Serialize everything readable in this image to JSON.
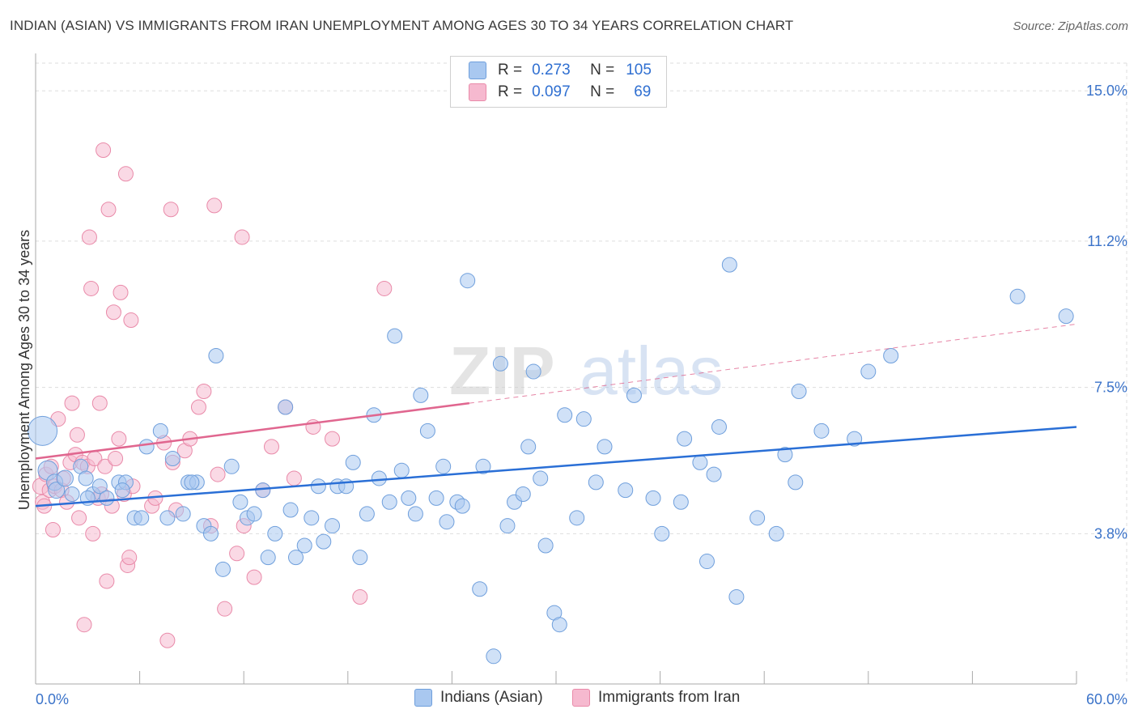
{
  "title": "INDIAN (ASIAN) VS IMMIGRANTS FROM IRAN UNEMPLOYMENT AMONG AGES 30 TO 34 YEARS CORRELATION CHART",
  "source": "Source: ZipAtlas.com",
  "watermark": {
    "zip": "ZIP",
    "atlas": "atlas"
  },
  "legend": {
    "series1": {
      "r_label": "R =",
      "r_value": "0.273",
      "n_label": "N =",
      "n_value": "105"
    },
    "series2": {
      "r_label": "R =",
      "r_value": "0.097",
      "n_label": "N =",
      "n_value": "69"
    }
  },
  "bottom_legend": {
    "series1": "Indians (Asian)",
    "series2": "Immigrants from Iran"
  },
  "colors": {
    "blue_fill": "#a9c8f0",
    "blue_stroke": "#6f9fdc",
    "blue_line": "#2a6fd6",
    "pink_fill": "#f6b9cf",
    "pink_stroke": "#e98aa9",
    "pink_line": "#e0668f",
    "tick_text": "#3b73c9",
    "grid": "#dddddd"
  },
  "chart_data": {
    "type": "scatter",
    "title": "INDIAN (ASIAN) VS IMMIGRANTS FROM IRAN UNEMPLOYMENT AMONG AGES 30 TO 34 YEARS CORRELATION CHART",
    "xlabel": "",
    "ylabel": "Unemployment Among Ages 30 to 34 years",
    "xlim": [
      0,
      60
    ],
    "ylim": [
      0,
      15.7
    ],
    "x_tick_labels": [
      "0.0%",
      "60.0%"
    ],
    "y_ticks": [
      3.8,
      7.5,
      11.2,
      15.0
    ],
    "y_tick_labels": [
      "3.8%",
      "7.5%",
      "11.2%",
      "15.0%"
    ],
    "series": [
      {
        "name": "Indians (Asian)",
        "R": 0.273,
        "N": 105,
        "trend": {
          "x0": 0,
          "y0": 4.5,
          "x1": 60,
          "y1": 6.5
        },
        "points": [
          [
            0.4,
            6.4,
            18
          ],
          [
            0.7,
            5.4,
            12
          ],
          [
            1.1,
            5.1,
            10
          ],
          [
            1.2,
            4.9,
            10
          ],
          [
            1.7,
            5.2,
            10
          ],
          [
            2.1,
            4.8,
            9
          ],
          [
            2.6,
            5.5,
            9
          ],
          [
            2.9,
            5.2,
            9
          ],
          [
            3.3,
            4.8,
            9
          ],
          [
            3.7,
            5.0,
            9
          ],
          [
            4.1,
            4.7,
            9
          ],
          [
            4.8,
            5.1,
            9
          ],
          [
            5.2,
            5.1,
            9
          ],
          [
            5.7,
            4.2,
            9
          ],
          [
            6.1,
            4.2,
            9
          ],
          [
            6.4,
            6.0,
            9
          ],
          [
            7.2,
            6.4,
            9
          ],
          [
            7.6,
            4.2,
            9
          ],
          [
            7.9,
            5.7,
            9
          ],
          [
            8.5,
            4.3,
            9
          ],
          [
            8.8,
            5.1,
            9
          ],
          [
            9.3,
            5.1,
            9
          ],
          [
            9.7,
            4.0,
            9
          ],
          [
            10.1,
            3.8,
            9
          ],
          [
            10.4,
            8.3,
            9
          ],
          [
            10.8,
            2.9,
            9
          ],
          [
            11.3,
            5.5,
            9
          ],
          [
            11.8,
            4.6,
            9
          ],
          [
            12.2,
            4.2,
            9
          ],
          [
            12.6,
            4.3,
            9
          ],
          [
            13.1,
            4.9,
            9
          ],
          [
            13.4,
            3.2,
            9
          ],
          [
            13.8,
            3.8,
            9
          ],
          [
            14.4,
            7.0,
            9
          ],
          [
            14.7,
            4.4,
            9
          ],
          [
            15.0,
            3.2,
            9
          ],
          [
            15.5,
            3.5,
            9
          ],
          [
            15.9,
            4.2,
            9
          ],
          [
            16.3,
            5.0,
            9
          ],
          [
            16.6,
            3.6,
            9
          ],
          [
            17.1,
            4.0,
            9
          ],
          [
            17.4,
            5.0,
            9
          ],
          [
            17.9,
            5.0,
            9
          ],
          [
            18.3,
            5.6,
            9
          ],
          [
            18.7,
            3.2,
            9
          ],
          [
            19.1,
            4.3,
            9
          ],
          [
            19.5,
            6.8,
            9
          ],
          [
            19.8,
            5.2,
            9
          ],
          [
            20.4,
            4.6,
            9
          ],
          [
            20.7,
            8.8,
            9
          ],
          [
            21.1,
            5.4,
            9
          ],
          [
            21.5,
            4.7,
            9
          ],
          [
            21.9,
            4.3,
            9
          ],
          [
            22.2,
            7.3,
            9
          ],
          [
            22.6,
            6.4,
            9
          ],
          [
            23.1,
            4.7,
            9
          ],
          [
            23.5,
            5.5,
            9
          ],
          [
            23.7,
            4.1,
            9
          ],
          [
            24.3,
            4.6,
            9
          ],
          [
            24.6,
            4.5,
            9
          ],
          [
            24.9,
            10.2,
            9
          ],
          [
            25.6,
            2.4,
            9
          ],
          [
            25.8,
            5.5,
            9
          ],
          [
            26.4,
            0.7,
            9
          ],
          [
            26.8,
            8.1,
            9
          ],
          [
            27.2,
            4.0,
            9
          ],
          [
            27.6,
            4.6,
            9
          ],
          [
            28.1,
            4.8,
            9
          ],
          [
            28.4,
            6.0,
            9
          ],
          [
            28.7,
            7.9,
            9
          ],
          [
            29.1,
            5.2,
            9
          ],
          [
            29.4,
            3.5,
            9
          ],
          [
            29.9,
            1.8,
            9
          ],
          [
            30.2,
            1.5,
            9
          ],
          [
            30.5,
            6.8,
            9
          ],
          [
            31.2,
            4.2,
            9
          ],
          [
            31.6,
            6.7,
            9
          ],
          [
            32.3,
            5.1,
            9
          ],
          [
            32.8,
            6.0,
            9
          ],
          [
            34.0,
            4.9,
            9
          ],
          [
            34.5,
            7.3,
            9
          ],
          [
            35.6,
            4.7,
            9
          ],
          [
            36.1,
            3.8,
            9
          ],
          [
            37.2,
            4.6,
            9
          ],
          [
            37.4,
            6.2,
            9
          ],
          [
            38.3,
            5.6,
            9
          ],
          [
            38.7,
            3.1,
            9
          ],
          [
            39.1,
            5.3,
            9
          ],
          [
            39.4,
            6.5,
            9
          ],
          [
            40.0,
            10.6,
            9
          ],
          [
            40.4,
            2.2,
            9
          ],
          [
            41.6,
            4.2,
            9
          ],
          [
            42.7,
            3.8,
            9
          ],
          [
            43.2,
            5.8,
            9
          ],
          [
            43.8,
            5.1,
            9
          ],
          [
            44.0,
            7.4,
            9
          ],
          [
            45.3,
            6.4,
            9
          ],
          [
            47.2,
            6.2,
            9
          ],
          [
            48.0,
            7.9,
            9
          ],
          [
            49.3,
            8.3,
            9
          ],
          [
            56.6,
            9.8,
            9
          ],
          [
            59.4,
            9.3,
            9
          ],
          [
            3.0,
            4.7,
            9
          ],
          [
            5.0,
            4.9,
            9
          ],
          [
            9.0,
            5.1,
            9
          ]
        ]
      },
      {
        "name": "Immigrants from Iran",
        "R": 0.097,
        "N": 69,
        "trend": {
          "x0": 0,
          "y0": 5.7,
          "x1": 25,
          "y1": 7.1,
          "dash_x1": 60,
          "dash_y1": 9.1
        },
        "points": [
          [
            0.3,
            5.0,
            10
          ],
          [
            0.4,
            4.6,
            9
          ],
          [
            0.5,
            4.5,
            9
          ],
          [
            0.6,
            5.3,
            9
          ],
          [
            0.8,
            4.9,
            9
          ],
          [
            0.9,
            5.5,
            9
          ],
          [
            1.0,
            3.9,
            9
          ],
          [
            1.1,
            5.0,
            9
          ],
          [
            1.3,
            6.7,
            9
          ],
          [
            1.5,
            4.9,
            9
          ],
          [
            1.6,
            5.2,
            9
          ],
          [
            1.8,
            4.6,
            9
          ],
          [
            2.0,
            5.6,
            9
          ],
          [
            2.1,
            7.1,
            9
          ],
          [
            2.3,
            5.8,
            9
          ],
          [
            2.4,
            6.3,
            9
          ],
          [
            2.5,
            4.2,
            9
          ],
          [
            2.7,
            5.6,
            9
          ],
          [
            2.8,
            1.5,
            9
          ],
          [
            3.0,
            5.5,
            9
          ],
          [
            3.1,
            11.3,
            9
          ],
          [
            3.2,
            10.0,
            9
          ],
          [
            3.3,
            3.8,
            9
          ],
          [
            3.4,
            5.7,
            9
          ],
          [
            3.6,
            4.7,
            9
          ],
          [
            3.7,
            7.1,
            9
          ],
          [
            3.8,
            4.8,
            9
          ],
          [
            3.9,
            13.5,
            9
          ],
          [
            4.0,
            5.5,
            9
          ],
          [
            4.1,
            2.6,
            9
          ],
          [
            4.2,
            12.0,
            9
          ],
          [
            4.4,
            4.5,
            9
          ],
          [
            4.5,
            9.4,
            9
          ],
          [
            4.6,
            5.7,
            9
          ],
          [
            4.8,
            6.2,
            9
          ],
          [
            4.9,
            9.9,
            9
          ],
          [
            5.1,
            4.8,
            9
          ],
          [
            5.2,
            12.9,
            9
          ],
          [
            5.3,
            3.0,
            9
          ],
          [
            5.4,
            3.2,
            9
          ],
          [
            5.5,
            9.2,
            9
          ],
          [
            5.6,
            5.0,
            9
          ],
          [
            6.7,
            4.5,
            9
          ],
          [
            6.9,
            4.7,
            9
          ],
          [
            7.4,
            6.1,
            9
          ],
          [
            7.6,
            1.1,
            9
          ],
          [
            7.8,
            12.0,
            9
          ],
          [
            7.9,
            5.6,
            9
          ],
          [
            8.1,
            4.4,
            9
          ],
          [
            8.6,
            5.9,
            9
          ],
          [
            8.9,
            6.2,
            9
          ],
          [
            9.4,
            7.0,
            9
          ],
          [
            9.7,
            7.4,
            9
          ],
          [
            10.1,
            4.0,
            9
          ],
          [
            10.3,
            12.1,
            9
          ],
          [
            10.5,
            5.3,
            9
          ],
          [
            10.9,
            1.9,
            9
          ],
          [
            11.6,
            3.3,
            9
          ],
          [
            11.9,
            11.3,
            9
          ],
          [
            12.0,
            4.0,
            9
          ],
          [
            12.6,
            2.7,
            9
          ],
          [
            13.1,
            4.9,
            9
          ],
          [
            13.6,
            6.0,
            9
          ],
          [
            14.4,
            7.0,
            9
          ],
          [
            14.9,
            5.2,
            9
          ],
          [
            16.0,
            6.5,
            9
          ],
          [
            17.1,
            6.2,
            9
          ],
          [
            18.7,
            2.2,
            9
          ],
          [
            20.1,
            10.0,
            9
          ]
        ]
      }
    ]
  }
}
